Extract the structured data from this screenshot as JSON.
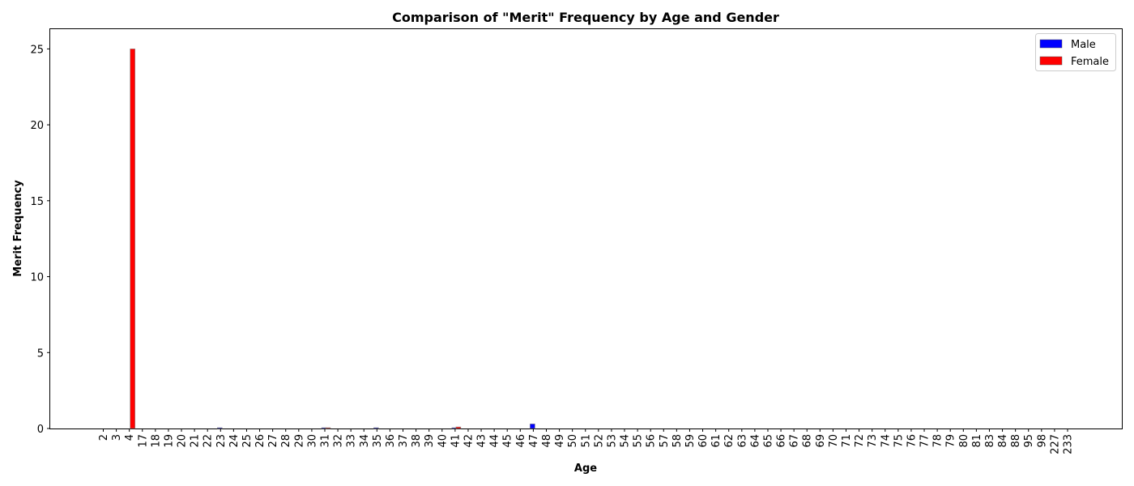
{
  "chart_data": {
    "type": "bar",
    "title": "Comparison of \"Merit\" Frequency by Age and Gender",
    "xlabel": "Age",
    "ylabel": "Merit Frequency",
    "ylim": [
      0,
      26.3
    ],
    "yticks": [
      0,
      5,
      10,
      15,
      20,
      25
    ],
    "grid": false,
    "legend_position": "top-right",
    "categories": [
      "2",
      "3",
      "4",
      "17",
      "18",
      "19",
      "20",
      "21",
      "22",
      "23",
      "24",
      "25",
      "26",
      "27",
      "28",
      "29",
      "30",
      "31",
      "32",
      "33",
      "34",
      "35",
      "36",
      "37",
      "38",
      "39",
      "40",
      "41",
      "42",
      "43",
      "44",
      "45",
      "46",
      "47",
      "48",
      "49",
      "50",
      "51",
      "52",
      "53",
      "54",
      "55",
      "56",
      "57",
      "58",
      "59",
      "60",
      "61",
      "62",
      "63",
      "64",
      "65",
      "66",
      "67",
      "68",
      "69",
      "70",
      "71",
      "72",
      "73",
      "74",
      "75",
      "76",
      "77",
      "78",
      "79",
      "80",
      "81",
      "83",
      "84",
      "88",
      "95",
      "98",
      "227",
      "233"
    ],
    "series": [
      {
        "name": "Male",
        "color": "#0000ff",
        "values": [
          0,
          0,
          0,
          0,
          0,
          0,
          0,
          0,
          0,
          0.05,
          0,
          0,
          0,
          0,
          0,
          0,
          0,
          0.05,
          0,
          0,
          0,
          0.05,
          0,
          0,
          0,
          0,
          0,
          0.05,
          0,
          0,
          0,
          0,
          0,
          0.3,
          0,
          0,
          0,
          0,
          0,
          0,
          0,
          0,
          0,
          0,
          0,
          0,
          0,
          0,
          0,
          0,
          0,
          0,
          0,
          0,
          0,
          0,
          0,
          0,
          0,
          0,
          0,
          0,
          0,
          0,
          0,
          0,
          0,
          0,
          0,
          0,
          0,
          0,
          0,
          0,
          0
        ]
      },
      {
        "name": "Female",
        "color": "#ff0000",
        "values": [
          0,
          0,
          25,
          0,
          0,
          0,
          0,
          0,
          0,
          0,
          0,
          0,
          0,
          0,
          0,
          0,
          0,
          0.05,
          0,
          0,
          0,
          0,
          0,
          0,
          0,
          0,
          0,
          0.1,
          0,
          0,
          0,
          0,
          0,
          0,
          0,
          0,
          0,
          0,
          0,
          0,
          0,
          0,
          0,
          0,
          0,
          0,
          0,
          0,
          0,
          0,
          0,
          0,
          0,
          0,
          0,
          0,
          0,
          0,
          0,
          0,
          0,
          0,
          0,
          0,
          0,
          0,
          0,
          0,
          0,
          0,
          0,
          0,
          0,
          0,
          0
        ]
      }
    ]
  }
}
